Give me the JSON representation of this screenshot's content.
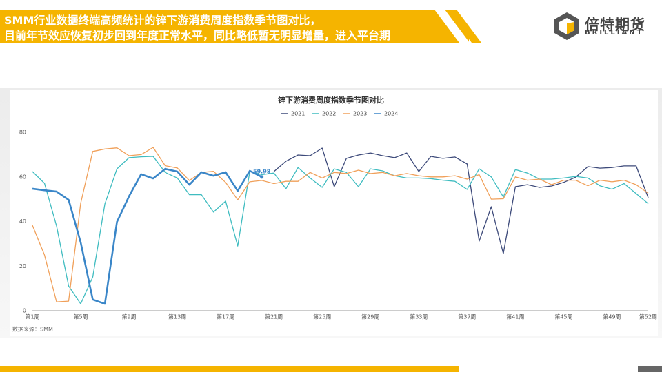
{
  "header": {
    "lines": [
      "SMM行业数据终端高频统计的锌下游消费周度指数季节图对比，",
      "目前年节效应恢复初步回到年度正常水平，同比略低暂无明显增量，进入平台期"
    ]
  },
  "logo": {
    "name": "倍特期货",
    "sub": "BRILLIANT"
  },
  "chart_data": {
    "type": "line",
    "title": "锌下游消费周度指数季节图对比",
    "source": "数据来源：SMM",
    "categories": [
      "第1周",
      null,
      null,
      null,
      "第5周",
      null,
      null,
      null,
      "第9周",
      null,
      null,
      null,
      "第13周",
      null,
      null,
      null,
      "第17周",
      null,
      null,
      null,
      "第21周",
      null,
      null,
      null,
      "第25周",
      null,
      null,
      null,
      "第29周",
      null,
      null,
      null,
      "第33周",
      null,
      null,
      null,
      "第37周",
      null,
      null,
      null,
      "第41周",
      null,
      null,
      null,
      "第45周",
      null,
      null,
      null,
      "第49周",
      null,
      null,
      "第52周"
    ],
    "ylim": [
      0,
      80
    ],
    "yticks": [
      0,
      20,
      40,
      60,
      80
    ],
    "series": [
      {
        "name": "2021",
        "color": "#3d4a7a",
        "values": [
          null,
          null,
          null,
          null,
          null,
          null,
          null,
          null,
          null,
          null,
          null,
          null,
          null,
          null,
          null,
          null,
          null,
          null,
          null,
          null,
          62.4,
          67,
          69.8,
          69.5,
          72.9,
          55.6,
          68.3,
          69.8,
          70.7,
          69.5,
          68.6,
          70.7,
          62.4,
          69.2,
          68.3,
          68.9,
          65.8,
          31.2,
          46.6,
          25.6,
          55.6,
          56.5,
          55.3,
          55.9,
          57.5,
          59.9,
          64.6,
          63.9,
          64.2,
          64.9,
          64.9,
          50.7
        ]
      },
      {
        "name": "2022",
        "color": "#3fbcc0",
        "values": [
          62.4,
          57.1,
          38,
          11.1,
          3.1,
          15.1,
          47.9,
          63.6,
          68.6,
          69,
          69.2,
          62,
          59.5,
          52,
          52,
          44.2,
          49.1,
          29,
          62.4,
          61,
          61.7,
          54.7,
          64.2,
          59.5,
          55.3,
          63.6,
          62,
          55.6,
          63.6,
          62.7,
          60.5,
          59.5,
          59.5,
          59.2,
          58.5,
          58,
          54.4,
          63.6,
          60,
          51,
          63.3,
          61.7,
          59,
          59,
          59.5,
          60.2,
          59.5,
          56,
          54.5,
          57,
          52.5,
          48
        ]
      },
      {
        "name": "2023",
        "color": "#f0a05a",
        "values": [
          38.3,
          25,
          4,
          4.3,
          48.2,
          71.4,
          72.5,
          73,
          69.5,
          70,
          73.2,
          65,
          64,
          58.4,
          62,
          62.5,
          57.5,
          49.7,
          57.8,
          58.4,
          57,
          58,
          58,
          62,
          59.5,
          62,
          61.5,
          63,
          61.5,
          62,
          60.5,
          61.5,
          60.5,
          60,
          60,
          60.5,
          59,
          61,
          50,
          50.2,
          60,
          58.5,
          59,
          56.5,
          58.5,
          58.5,
          56,
          58.5,
          57.8,
          58.5,
          56.5,
          52.71
        ]
      },
      {
        "name": "2024",
        "color": "#3a86c8",
        "values": [
          54.7,
          54,
          53.4,
          49.7,
          30.6,
          5,
          3.1,
          39.8,
          51.3,
          61.2,
          59.3,
          63.6,
          62.4,
          56.5,
          62.1,
          60.5,
          62.1,
          53.7,
          62.7,
          59.98,
          null,
          null,
          null,
          null,
          null,
          null,
          null,
          null,
          null,
          null,
          null,
          null,
          null,
          null,
          null,
          null,
          null,
          null,
          null,
          null,
          null,
          null,
          null,
          null,
          null,
          null,
          null,
          null,
          null,
          null,
          null,
          null
        ],
        "value_labels": [
          null,
          null,
          null,
          null,
          null,
          null,
          null,
          null,
          null,
          null,
          null,
          null,
          null,
          null,
          null,
          null,
          null,
          null,
          null,
          "59.98",
          null,
          null,
          null,
          null,
          null,
          null,
          null,
          null,
          null,
          null,
          null,
          null,
          null,
          null,
          null,
          null,
          null,
          null,
          null,
          null,
          null,
          null,
          null,
          null,
          null,
          null,
          null,
          null,
          null,
          null,
          null,
          null
        ]
      }
    ]
  }
}
